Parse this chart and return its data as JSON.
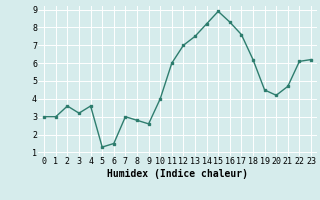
{
  "x": [
    0,
    1,
    2,
    3,
    4,
    5,
    6,
    7,
    8,
    9,
    10,
    11,
    12,
    13,
    14,
    15,
    16,
    17,
    18,
    19,
    20,
    21,
    22,
    23
  ],
  "y": [
    3.0,
    3.0,
    3.6,
    3.2,
    3.6,
    1.3,
    1.5,
    3.0,
    2.8,
    2.6,
    4.0,
    6.0,
    7.0,
    7.5,
    8.2,
    8.9,
    8.3,
    7.6,
    6.2,
    4.5,
    4.2,
    4.7,
    6.1,
    6.2
  ],
  "line_color": "#2e7d6e",
  "marker": "s",
  "marker_size": 2,
  "bg_color": "#d6ecec",
  "grid_color": "#ffffff",
  "xlabel": "Humidex (Indice chaleur)",
  "ylim_min": 1,
  "ylim_max": 9,
  "xlim_min": 0,
  "xlim_max": 23,
  "yticks": [
    1,
    2,
    3,
    4,
    5,
    6,
    7,
    8,
    9
  ],
  "xticks": [
    0,
    1,
    2,
    3,
    4,
    5,
    6,
    7,
    8,
    9,
    10,
    11,
    12,
    13,
    14,
    15,
    16,
    17,
    18,
    19,
    20,
    21,
    22,
    23
  ],
  "tick_fontsize": 6,
  "xlabel_fontsize": 7,
  "linewidth": 1.0
}
